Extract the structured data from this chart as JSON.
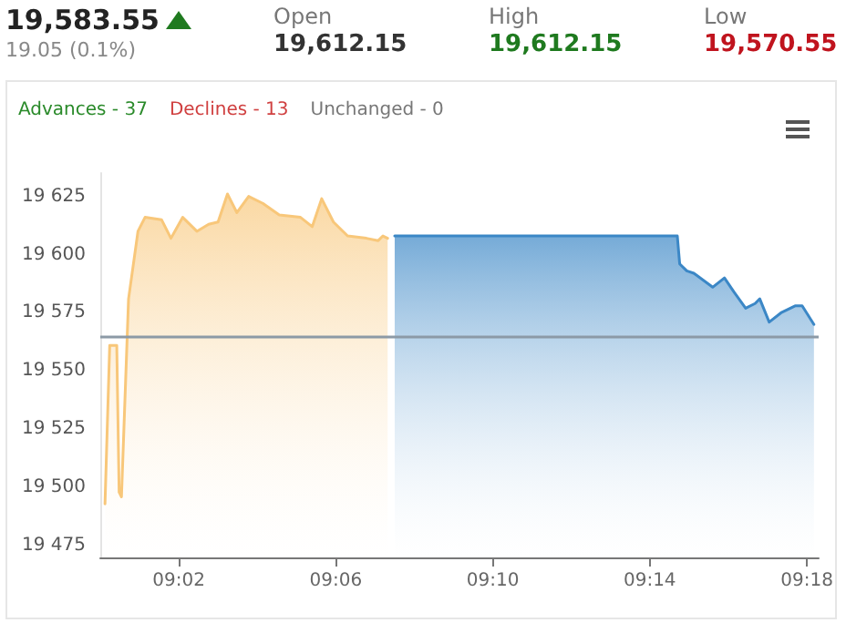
{
  "chart_data": {
    "type": "area",
    "title": "19,583.55",
    "subtitle": "19.05 (0.1%)",
    "annotations": [
      "Open",
      "19,612.15",
      "High",
      "19,612.15",
      "Low",
      "19,570.55",
      "Advances - 37",
      "Declines - 13",
      "Unchanged - 0"
    ],
    "xlim": [
      9.0,
      9.305
    ],
    "xticks": [
      {
        "value": 9.0333,
        "label": "09:02"
      },
      {
        "value": 9.1,
        "label": "09:06"
      },
      {
        "value": 9.1667,
        "label": "09:10"
      },
      {
        "value": 9.2333,
        "label": "09:14"
      },
      {
        "value": 9.3,
        "label": "09:18"
      }
    ],
    "ylim": [
      19470,
      19635
    ],
    "yticks": [
      {
        "value": 19475,
        "label": "19 475"
      },
      {
        "value": 19500,
        "label": "19 500"
      },
      {
        "value": 19525,
        "label": "19 525"
      },
      {
        "value": 19550,
        "label": "19 550"
      },
      {
        "value": 19575,
        "label": "19 575"
      },
      {
        "value": 19600,
        "label": "19 600"
      },
      {
        "value": 19625,
        "label": "19 625"
      }
    ],
    "grid": false,
    "marker": "none",
    "line_style": "solid",
    "ref_lines": [
      {
        "axis": "y",
        "value": 19565,
        "color": "#8c9aa6"
      }
    ],
    "series": [
      {
        "color": "#f8c77a",
        "x": [
          9.002,
          9.004,
          9.007,
          9.008,
          9.009,
          9.012,
          9.016,
          9.019,
          9.026,
          9.03,
          9.035,
          9.041,
          9.046,
          9.05,
          9.054,
          9.058,
          9.063,
          9.069,
          9.076,
          9.085,
          9.09,
          9.094,
          9.099,
          9.105,
          9.113,
          9.118,
          9.12,
          9.122
        ],
        "values": [
          19493,
          19561,
          19561,
          19498,
          19496,
          19581,
          19610,
          19616,
          19615,
          19607,
          19616,
          19610,
          19613,
          19614,
          19626,
          19618,
          19625,
          19622,
          19617,
          19616,
          19612,
          19624,
          19614,
          19608,
          19607,
          19606,
          19608,
          19607
        ]
      },
      {
        "color": "#3b87c6",
        "x": [
          9.125,
          9.245,
          9.246,
          9.249,
          9.252,
          9.26,
          9.265,
          9.269,
          9.274,
          9.278,
          9.28,
          9.284,
          9.289,
          9.295,
          9.298,
          9.303
        ],
        "values": [
          19608,
          19608,
          19596,
          19593,
          19592,
          19586,
          19590,
          19584,
          19577,
          19579,
          19581,
          19571,
          19575,
          19578,
          19578,
          19570
        ]
      }
    ]
  }
}
